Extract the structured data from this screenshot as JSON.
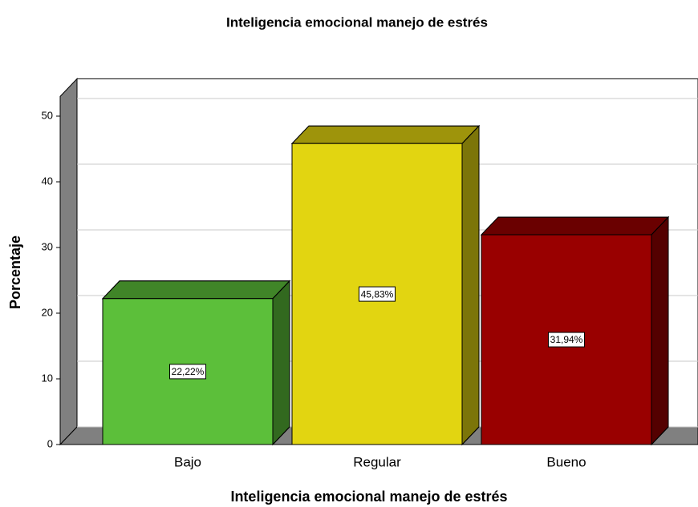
{
  "chart_data": {
    "type": "bar3d",
    "title": "Inteligencia emocional manejo de estrés",
    "x_label": "Inteligencia emocional manejo de estrés",
    "y_label": "Porcentaje",
    "categories": [
      "Bajo",
      "Regular",
      "Bueno"
    ],
    "values": [
      22.22,
      45.83,
      31.94
    ],
    "value_labels": [
      "22,22%",
      "45,83%",
      "31,94%"
    ],
    "colors": [
      "#5cbf3a",
      "#e2d511",
      "#990000"
    ],
    "ylim": [
      0,
      53
    ],
    "yticks": [
      0,
      10,
      20,
      30,
      40,
      50
    ],
    "grid": true
  }
}
